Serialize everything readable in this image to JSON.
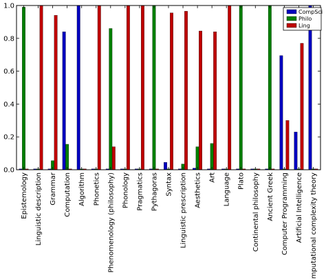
{
  "chart_data": {
    "type": "bar",
    "categories": [
      "Epistemology",
      "Linguistic description",
      "Grammar",
      "Computation",
      "Algorithm",
      "Phonetics",
      "Phenomenology (philosophy)",
      "Phonology",
      "Pragmatics",
      "Pythagoras",
      "Syntax",
      "Linguistic prescription",
      "Aesthetics",
      "Art",
      "Language",
      "Plato",
      "Continental philosophy",
      "Ancient Greek",
      "Computer Programming",
      "Artificial Intelligence",
      "Computational complexity theory"
    ],
    "series": [
      {
        "name": "CompSci",
        "color": "#0000bf",
        "values": [
          0.005,
          0.005,
          0.005,
          0.84,
          1.0,
          0.005,
          0.005,
          0.005,
          0.005,
          0.005,
          0.045,
          0.005,
          0.01,
          0.005,
          0.005,
          0.005,
          0.005,
          0.005,
          0.695,
          0.23,
          1.0
        ]
      },
      {
        "name": "Philo",
        "color": "#007f00",
        "values": [
          0.99,
          0.005,
          0.055,
          0.155,
          0.005,
          0.005,
          0.86,
          0.005,
          0.005,
          1.0,
          0.005,
          0.035,
          0.14,
          0.16,
          0.005,
          1.0,
          0.005,
          1.0,
          0.005,
          0.005,
          0.005
        ]
      },
      {
        "name": "Ling",
        "color": "#bf0000",
        "values": [
          0.005,
          1.0,
          0.94,
          0.005,
          0.005,
          1.0,
          0.14,
          1.0,
          1.0,
          0.005,
          0.955,
          0.965,
          0.845,
          0.84,
          1.0,
          0.005,
          0.005,
          0.005,
          0.3,
          0.77,
          0.005
        ]
      }
    ],
    "ylim": [
      0,
      1.0
    ],
    "yticks": [
      "0.0",
      "0.2",
      "0.4",
      "0.6",
      "0.8",
      "1.0"
    ],
    "legend_position": "top-right",
    "grid": false
  }
}
